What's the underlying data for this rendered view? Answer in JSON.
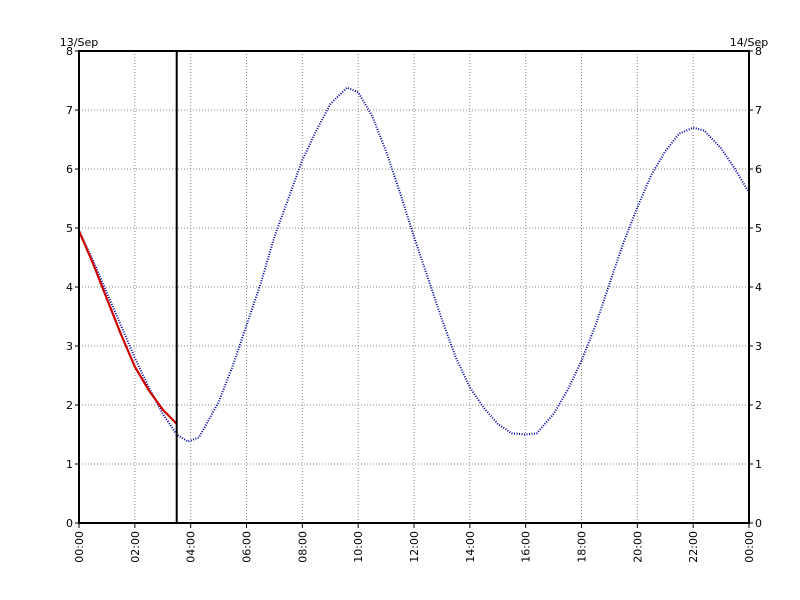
{
  "chart_data": {
    "type": "line",
    "date_start": "13/Sep",
    "date_end": "14/Sep",
    "x_unit": "hours",
    "xlim": [
      0,
      24
    ],
    "ylim": [
      0,
      8
    ],
    "y_ticks": [
      0,
      1,
      2,
      3,
      4,
      5,
      6,
      7,
      8
    ],
    "x_ticks": [
      0,
      2,
      4,
      6,
      8,
      10,
      12,
      14,
      16,
      18,
      20,
      22,
      24
    ],
    "x_tick_labels": [
      "00:00",
      "02:00",
      "04:00",
      "06:00",
      "08:00",
      "10:00",
      "12:00",
      "14:00",
      "16:00",
      "18:00",
      "20:00",
      "22:00",
      "00:00"
    ],
    "grid": true,
    "current_time_marker": 3.5,
    "series": [
      {
        "style": "dotted",
        "color": "#0000aa",
        "x": [
          0,
          0.5,
          1,
          1.5,
          2,
          2.5,
          3,
          3.5,
          3.9,
          4.3,
          5,
          5.5,
          6,
          6.5,
          7,
          7.5,
          8,
          8.5,
          9,
          9.6,
          10,
          10.5,
          11,
          11.5,
          12,
          12.5,
          13,
          13.5,
          14,
          14.5,
          15,
          15.5,
          16,
          16.4,
          17,
          17.5,
          18,
          18.5,
          19,
          19.5,
          20,
          20.5,
          21,
          21.5,
          22,
          22.4,
          23,
          23.5,
          24
        ],
        "y": [
          4.95,
          4.45,
          3.9,
          3.35,
          2.8,
          2.3,
          1.85,
          1.5,
          1.38,
          1.45,
          2.05,
          2.65,
          3.35,
          4.05,
          4.85,
          5.5,
          6.15,
          6.65,
          7.1,
          7.38,
          7.3,
          6.9,
          6.3,
          5.6,
          4.85,
          4.15,
          3.45,
          2.8,
          2.3,
          1.95,
          1.68,
          1.52,
          1.5,
          1.52,
          1.85,
          2.25,
          2.75,
          3.35,
          4.05,
          4.75,
          5.35,
          5.9,
          6.3,
          6.6,
          6.7,
          6.65,
          6.35,
          6.0,
          5.6
        ]
      },
      {
        "style": "solid",
        "color": "#cc0000",
        "x": [
          0,
          0.5,
          1,
          1.5,
          2,
          2.5,
          3,
          3.5
        ],
        "y": [
          4.95,
          4.4,
          3.8,
          3.2,
          2.65,
          2.25,
          1.92,
          1.68
        ]
      }
    ]
  }
}
